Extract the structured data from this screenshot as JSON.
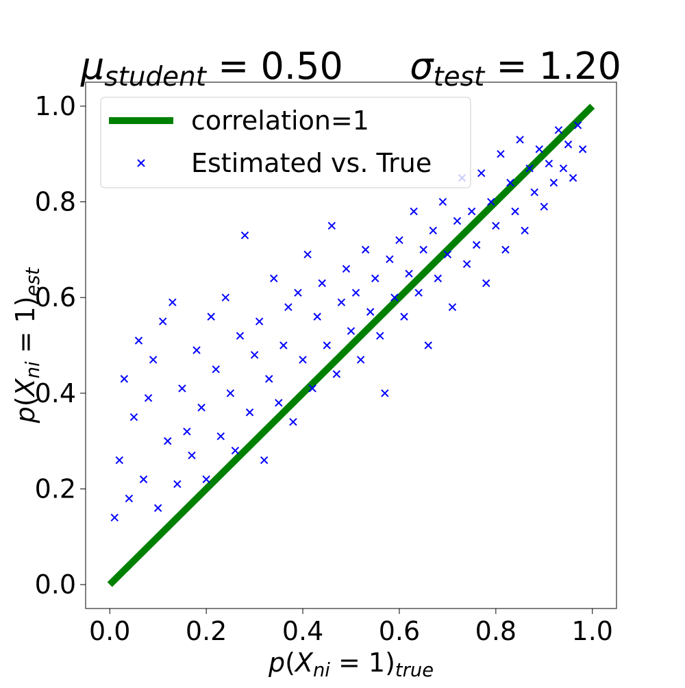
{
  "chart_data": {
    "type": "scatter",
    "title_left": [
      {
        "text": "μ",
        "italic": true
      },
      {
        "text": "student",
        "italic": true,
        "sub": true
      },
      {
        "text": " = 0.50"
      }
    ],
    "title_right": [
      {
        "text": "σ",
        "italic": true
      },
      {
        "text": "test",
        "italic": true,
        "sub": true
      },
      {
        "text": " = 1.20"
      }
    ],
    "x_label": [
      {
        "text": "p",
        "italic": true
      },
      {
        "text": "("
      },
      {
        "text": "X",
        "italic": true
      },
      {
        "text": "ni",
        "italic": true,
        "sub": true
      },
      {
        "text": " = 1)"
      },
      {
        "text": "true",
        "italic": true,
        "sub": true
      }
    ],
    "y_label": [
      {
        "text": "p",
        "italic": true
      },
      {
        "text": "("
      },
      {
        "text": "X",
        "italic": true
      },
      {
        "text": "ni",
        "italic": true,
        "sub": true
      },
      {
        "text": " = 1)"
      },
      {
        "text": "est",
        "italic": true,
        "sub": true
      }
    ],
    "xlim": [
      -0.05,
      1.05
    ],
    "ylim": [
      -0.05,
      1.05
    ],
    "xticks": [
      {
        "value": 0,
        "label": "0.0"
      },
      0.2,
      0.4,
      0.6,
      0.8,
      {
        "value": 1,
        "label": "1.0"
      }
    ],
    "yticks": [
      {
        "value": 0,
        "label": "0.0"
      },
      0.2,
      0.4,
      0.6,
      0.8,
      {
        "value": 1,
        "label": "1.0"
      }
    ],
    "legend": "upper left",
    "series": [
      {
        "name": "correlation=1",
        "type": "line",
        "color": "#008000",
        "x": [
          0,
          1
        ],
        "values": [
          0,
          1
        ]
      },
      {
        "name": "Estimated vs. True",
        "type": "scatter",
        "marker": "x",
        "color": "#0000ff",
        "x": [
          0.01,
          0.02,
          0.03,
          0.04,
          0.05,
          0.06,
          0.07,
          0.08,
          0.09,
          0.1,
          0.11,
          0.12,
          0.13,
          0.14,
          0.15,
          0.16,
          0.17,
          0.18,
          0.19,
          0.2,
          0.21,
          0.22,
          0.23,
          0.24,
          0.25,
          0.26,
          0.27,
          0.28,
          0.29,
          0.3,
          0.31,
          0.32,
          0.33,
          0.34,
          0.35,
          0.36,
          0.37,
          0.38,
          0.39,
          0.4,
          0.41,
          0.42,
          0.43,
          0.44,
          0.45,
          0.46,
          0.47,
          0.48,
          0.49,
          0.5,
          0.51,
          0.52,
          0.53,
          0.54,
          0.55,
          0.56,
          0.57,
          0.58,
          0.59,
          0.6,
          0.61,
          0.62,
          0.63,
          0.64,
          0.65,
          0.66,
          0.67,
          0.68,
          0.69,
          0.7,
          0.71,
          0.72,
          0.73,
          0.74,
          0.75,
          0.76,
          0.77,
          0.78,
          0.79,
          0.8,
          0.81,
          0.82,
          0.83,
          0.84,
          0.85,
          0.86,
          0.87,
          0.88,
          0.89,
          0.9,
          0.91,
          0.92,
          0.93,
          0.94,
          0.95,
          0.96,
          0.97,
          0.98
        ],
        "values": [
          0.14,
          0.26,
          0.43,
          0.18,
          0.35,
          0.51,
          0.22,
          0.39,
          0.47,
          0.16,
          0.55,
          0.3,
          0.59,
          0.21,
          0.41,
          0.32,
          0.27,
          0.49,
          0.37,
          0.22,
          0.56,
          0.45,
          0.31,
          0.6,
          0.4,
          0.28,
          0.52,
          0.73,
          0.36,
          0.48,
          0.55,
          0.26,
          0.43,
          0.64,
          0.38,
          0.5,
          0.58,
          0.34,
          0.61,
          0.47,
          0.69,
          0.41,
          0.56,
          0.63,
          0.5,
          0.75,
          0.44,
          0.59,
          0.66,
          0.53,
          0.61,
          0.47,
          0.7,
          0.57,
          0.64,
          0.52,
          0.4,
          0.68,
          0.6,
          0.72,
          0.56,
          0.65,
          0.78,
          0.61,
          0.7,
          0.5,
          0.74,
          0.64,
          0.8,
          0.69,
          0.58,
          0.76,
          0.85,
          0.67,
          0.78,
          0.71,
          0.86,
          0.63,
          0.8,
          0.75,
          0.9,
          0.7,
          0.84,
          0.78,
          0.93,
          0.74,
          0.87,
          0.82,
          0.91,
          0.79,
          0.88,
          0.84,
          0.95,
          0.87,
          0.92,
          0.85,
          0.96,
          0.91
        ]
      }
    ]
  }
}
